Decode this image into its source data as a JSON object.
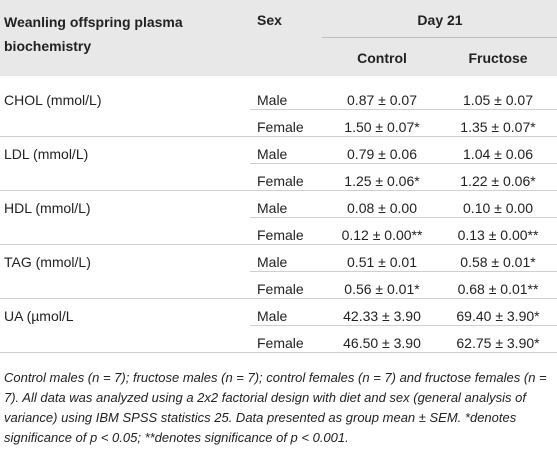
{
  "table": {
    "header": {
      "variable": "Weanling offspring plasma biochemistry",
      "sex": "Sex",
      "group": "Day 21",
      "control": "Control",
      "fructose": "Fructose"
    },
    "groups": [
      {
        "label": "CHOL (mmol/L)",
        "rows": [
          [
            "Male",
            "0.87 ± 0.07",
            "1.05 ± 0.07"
          ],
          [
            "Female",
            "1.50 ± 0.07*",
            "1.35 ± 0.07*"
          ]
        ]
      },
      {
        "label": "LDL (mmol/L)",
        "rows": [
          [
            "Male",
            "0.79 ± 0.06",
            "1.04 ± 0.06"
          ],
          [
            "Female",
            "1.25 ± 0.06*",
            "1.22 ± 0.06*"
          ]
        ]
      },
      {
        "label": "HDL (mmol/L)",
        "rows": [
          [
            "Male",
            "0.08 ± 0.00",
            "0.10 ± 0.00"
          ],
          [
            "Female",
            "0.12 ± 0.00**",
            "0.13 ± 0.00**"
          ]
        ]
      },
      {
        "label": "TAG (mmol/L)",
        "rows": [
          [
            "Male",
            "0.51 ± 0.01",
            "0.58 ± 0.01*"
          ],
          [
            "Female",
            "0.56 ± 0.01*",
            "0.68 ± 0.01**"
          ]
        ]
      },
      {
        "label": "UA (µmol/L",
        "rows": [
          [
            "Male",
            "42.33 ± 3.90",
            "69.40 ± 3.90*"
          ],
          [
            "Female",
            "46.50 ± 3.90",
            "62.75 ± 3.90*"
          ]
        ]
      }
    ],
    "footnote": "Control males (n = 7); fructose males (n = 7); control females (n = 7) and fructose females (n = 7). All data was analyzed using a 2x2 factorial design with diet and sex (general analysis of variance) using IBM SPSS statistics 25. Data presented as group mean ± SEM. *denotes significance of p < 0.05; **denotes significance of p < 0.001."
  }
}
